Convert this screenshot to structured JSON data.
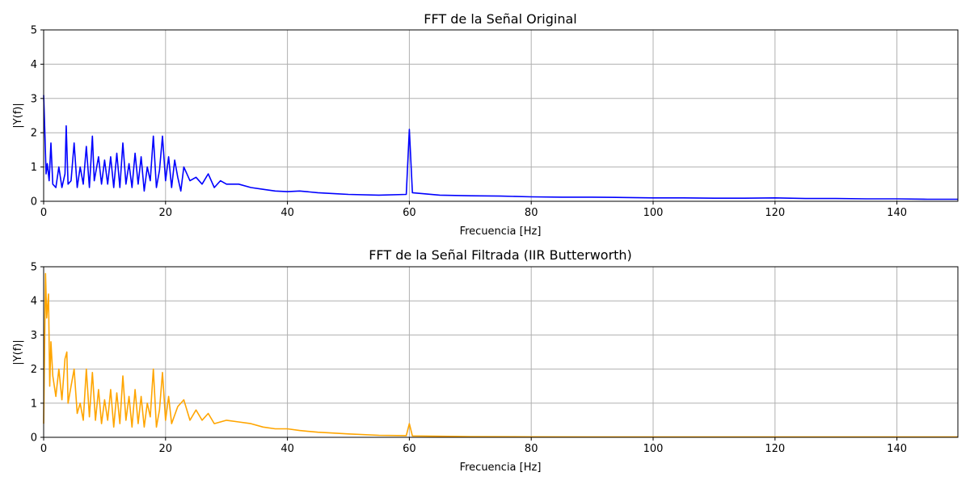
{
  "chart_data": [
    {
      "type": "line",
      "title": "FFT de la Señal Original",
      "xlabel": "Frecuencia [Hz]",
      "ylabel": "|Y(f)|",
      "xlim": [
        0,
        150
      ],
      "ylim": [
        0,
        5
      ],
      "xticks": [
        0,
        20,
        40,
        60,
        80,
        100,
        120,
        140
      ],
      "yticks": [
        0,
        1,
        2,
        3,
        4,
        5
      ],
      "grid": true,
      "color": "#0000ff",
      "series": [
        {
          "x": [
            0,
            0.2,
            0.4,
            0.6,
            0.9,
            1.2,
            1.5,
            2,
            2.5,
            3,
            3.5,
            3.7,
            4,
            4.5,
            5,
            5.5,
            6,
            6.5,
            7,
            7.5,
            8,
            8.3,
            9,
            9.5,
            10,
            10.5,
            11,
            11.5,
            12,
            12.5,
            13,
            13.5,
            14,
            14.5,
            15,
            15.5,
            16,
            16.5,
            17,
            17.5,
            18,
            18.5,
            19,
            19.5,
            20,
            20.5,
            21,
            21.5,
            22,
            22.5,
            23,
            24,
            25,
            26,
            27,
            28,
            29,
            30,
            32,
            34,
            36,
            38,
            40,
            42,
            45,
            48,
            50,
            55,
            59.5,
            60,
            60.5,
            65,
            70,
            75,
            80,
            85,
            90,
            95,
            100,
            105,
            110,
            115,
            120,
            125,
            130,
            135,
            140,
            145,
            150
          ],
          "y": [
            3.1,
            2.0,
            0.8,
            1.1,
            0.6,
            1.7,
            0.5,
            0.4,
            1.0,
            0.4,
            0.8,
            2.2,
            0.5,
            0.6,
            1.7,
            0.4,
            1.0,
            0.5,
            1.6,
            0.4,
            1.9,
            0.6,
            1.3,
            0.5,
            1.2,
            0.5,
            1.3,
            0.4,
            1.4,
            0.4,
            1.7,
            0.5,
            1.1,
            0.4,
            1.4,
            0.5,
            1.3,
            0.3,
            1.0,
            0.6,
            1.9,
            0.4,
            0.9,
            1.9,
            0.6,
            1.3,
            0.4,
            1.2,
            0.7,
            0.3,
            1.0,
            0.6,
            0.7,
            0.5,
            0.8,
            0.4,
            0.6,
            0.5,
            0.5,
            0.4,
            0.35,
            0.3,
            0.28,
            0.3,
            0.25,
            0.22,
            0.2,
            0.18,
            0.2,
            2.1,
            0.25,
            0.18,
            0.16,
            0.15,
            0.13,
            0.12,
            0.12,
            0.11,
            0.1,
            0.1,
            0.09,
            0.09,
            0.1,
            0.08,
            0.08,
            0.07,
            0.07,
            0.06,
            0.06
          ]
        }
      ]
    },
    {
      "type": "line",
      "title": "FFT de la Señal Filtrada (IIR Butterworth)",
      "xlabel": "Frecuencia [Hz]",
      "ylabel": "|Y(f)|",
      "xlim": [
        0,
        150
      ],
      "ylim": [
        0,
        5
      ],
      "xticks": [
        0,
        20,
        40,
        60,
        80,
        100,
        120,
        140
      ],
      "yticks": [
        0,
        1,
        2,
        3,
        4,
        5
      ],
      "grid": true,
      "color": "#ffa500",
      "series": [
        {
          "x": [
            0,
            0.3,
            0.5,
            0.8,
            1.0,
            1.2,
            1.5,
            2,
            2.5,
            3,
            3.5,
            3.8,
            4,
            4.5,
            5,
            5.5,
            6,
            6.5,
            7,
            7.5,
            8,
            8.5,
            9,
            9.5,
            10,
            10.5,
            11,
            11.5,
            12,
            12.5,
            13,
            13.5,
            14,
            14.5,
            15,
            15.5,
            16,
            16.5,
            17,
            17.5,
            18,
            18.5,
            19,
            19.5,
            20,
            20.5,
            21,
            22,
            23,
            24,
            25,
            26,
            27,
            28,
            30,
            32,
            34,
            36,
            38,
            40,
            42,
            45,
            48,
            50,
            55,
            59.5,
            60,
            60.5,
            65,
            70,
            80,
            90,
            100,
            110,
            120,
            130,
            140,
            150
          ],
          "y": [
            0.4,
            4.8,
            3.5,
            4.2,
            1.5,
            2.8,
            1.8,
            1.2,
            2.0,
            1.1,
            2.3,
            2.5,
            1.0,
            1.5,
            2.0,
            0.7,
            1.0,
            0.5,
            2.0,
            0.6,
            1.9,
            0.5,
            1.4,
            0.4,
            1.1,
            0.5,
            1.4,
            0.3,
            1.3,
            0.4,
            1.8,
            0.5,
            1.2,
            0.3,
            1.4,
            0.4,
            1.2,
            0.3,
            1.0,
            0.6,
            2.0,
            0.3,
            0.8,
            1.9,
            0.5,
            1.2,
            0.4,
            0.9,
            1.1,
            0.5,
            0.8,
            0.5,
            0.7,
            0.4,
            0.5,
            0.45,
            0.4,
            0.3,
            0.25,
            0.25,
            0.2,
            0.15,
            0.12,
            0.1,
            0.06,
            0.05,
            0.4,
            0.04,
            0.03,
            0.02,
            0.015,
            0.01,
            0.01,
            0.01,
            0.01,
            0.01,
            0.01,
            0.01
          ]
        }
      ]
    }
  ]
}
